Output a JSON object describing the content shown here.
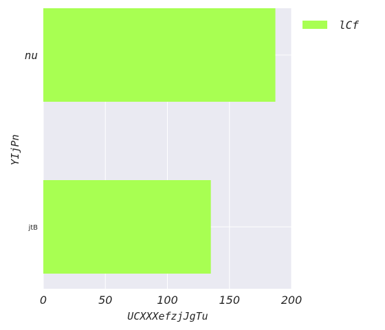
{
  "chart_data": {
    "type": "bar",
    "orientation": "horizontal",
    "categories": [
      "nu",
      "jtB"
    ],
    "series": [
      {
        "name": "lCf",
        "values": [
          187,
          135
        ],
        "color": "#a8ff52"
      }
    ],
    "xlabel": "UCXXXefzjJgTu",
    "ylabel": "YIjPn",
    "xlim": [
      0,
      200
    ],
    "xticks": [
      "0",
      "50",
      "100",
      "150",
      "200"
    ],
    "grid": true,
    "legend": "top-right outside",
    "background": "#eaeaf2"
  }
}
